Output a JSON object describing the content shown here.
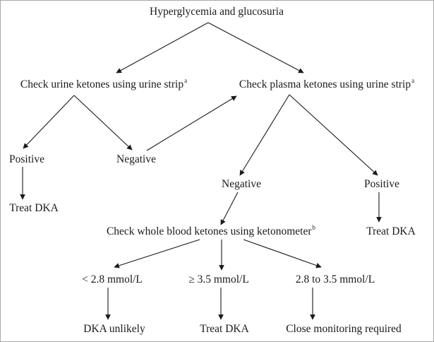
{
  "nodes": {
    "root": {
      "label": "Hyperglycemia and glucosuria"
    },
    "urine": {
      "label": "Check urine ketones using urine strip",
      "note": "a"
    },
    "plasma": {
      "label": "Check plasma ketones using urine strip",
      "note": "a"
    },
    "urine_pos": {
      "label": "Positive"
    },
    "urine_neg": {
      "label": "Negative"
    },
    "urine_pos_treat": {
      "label": "Treat DKA"
    },
    "plasma_neg": {
      "label": "Negative"
    },
    "plasma_pos": {
      "label": "Positive"
    },
    "plasma_pos_treat": {
      "label": "Treat DKA"
    },
    "blood": {
      "label": "Check whole blood ketones using ketonometer",
      "note": "b"
    },
    "low": {
      "label": "< 2.8 mmol/L"
    },
    "high": {
      "label": "≥ 3.5 mmol/L"
    },
    "mid": {
      "label": "2.8 to 3.5 mmol/L"
    },
    "low_out": {
      "label": "DKA unlikely"
    },
    "high_out": {
      "label": "Treat DKA"
    },
    "mid_out": {
      "label": "Close monitoring required"
    }
  }
}
